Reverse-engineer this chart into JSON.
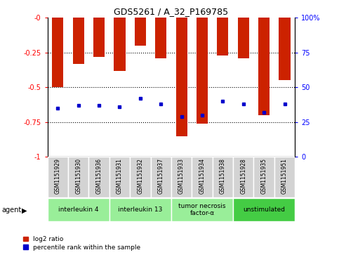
{
  "title": "GDS5261 / A_32_P169785",
  "samples": [
    "GSM1151929",
    "GSM1151930",
    "GSM1151936",
    "GSM1151931",
    "GSM1151932",
    "GSM1151937",
    "GSM1151933",
    "GSM1151934",
    "GSM1151938",
    "GSM1151928",
    "GSM1151935",
    "GSM1151951"
  ],
  "log2_ratios": [
    -0.5,
    -0.33,
    -0.28,
    -0.38,
    -0.2,
    -0.29,
    -0.85,
    -0.76,
    -0.27,
    -0.29,
    -0.7,
    -0.45
  ],
  "percentile_ranks": [
    35,
    37,
    37,
    36,
    42,
    38,
    29,
    30,
    40,
    38,
    32,
    38
  ],
  "agents": [
    {
      "label": "interleukin 4",
      "start": 0,
      "end": 3,
      "color": "#99ee99"
    },
    {
      "label": "interleukin 13",
      "start": 3,
      "end": 6,
      "color": "#99ee99"
    },
    {
      "label": "tumor necrosis\nfactor-α",
      "start": 6,
      "end": 9,
      "color": "#99ee99"
    },
    {
      "label": "unstimulated",
      "start": 9,
      "end": 12,
      "color": "#44cc44"
    }
  ],
  "bar_color": "#cc2200",
  "dot_color": "#0000cc",
  "ylim": [
    0.0,
    1.0
  ],
  "yticks": [
    0.0,
    0.25,
    0.5,
    0.75,
    1.0
  ],
  "ytick_labels_left": [
    "-0",
    "-0.25",
    "-0.5",
    "-0.75",
    "-1"
  ],
  "ytick_labels_right": [
    "100%",
    "75",
    "50",
    "25",
    "0"
  ],
  "background_color": "#ffffff",
  "plot_bg_color": "#ffffff",
  "legend_log2": "log2 ratio",
  "legend_pct": "percentile rank within the sample",
  "agent_label": "agent",
  "sample_bg_color": "#d3d3d3",
  "bar_width": 0.55
}
